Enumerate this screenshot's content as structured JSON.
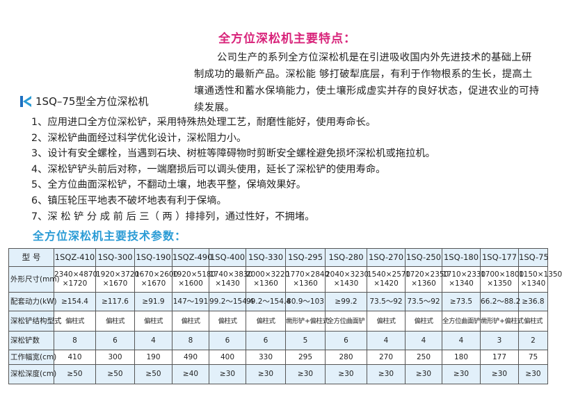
{
  "features_title": "全方位深松机主要特点：",
  "intro_text": "公司生产的系列全方位深松机是在引进吸收国内外先进技术的基础上研制成功的最新产品。深松能 够打破犁底层，有利于作物根系的生长，提高土壤通透性和蓄水保墒能力，使土壤形成虚实并存的良好状态，促进农业的可持续发展。",
  "model_heading": {
    "icon": "blue-k-logo-icon",
    "text": "1SQ–75型全方位深松机"
  },
  "features": [
    "1、应用进口全方位深松铲，采用特殊热处理工艺，耐磨性能好，使用寿命长。",
    "2、深松铲曲面经过科学优化设计，深松阻力小。",
    "3、设计有安全螺栓，当遇到石块、树桩等障碍物时剪断安全螺栓避免损坏深松机或拖拉机。",
    "4、深松铲铲头前后对称，一端磨损后可以调头使用，延长了深松铲的使用寿命。",
    "5、全方位曲面深松铲，不翻动土壤，地表平整，保墒效果好。",
    "6、镇压轮压平地表不破坏地表有利于保墒。",
    "7、深 松 铲 分 成 前 后 三（ 两 ）排排列，通过性好，不拥堵。"
  ],
  "specs_title": "全方位深松机主要技术参数：",
  "colors": {
    "title": "#d8237a",
    "subhead": "#2a9bd5",
    "row_blue": "#e2f0fa"
  },
  "table": {
    "header": {
      "label": "型 号",
      "models": [
        "1SQZ-410",
        "1SQ-300",
        "1SQ-190",
        "1SQZ-490",
        "1SQ-400",
        "1SQ-330",
        "1SQ-295",
        "1SQ-280",
        "1SQ-270",
        "1SQ-250",
        "1SQ-180",
        "1SQ-177",
        "1SQ-75"
      ]
    },
    "rows": [
      {
        "label": "外形尺寸(mm)",
        "values": [
          [
            "2340×4870",
            "×1720"
          ],
          [
            "1920×3720",
            "×1670"
          ],
          [
            "1670×2600",
            "×1670"
          ],
          [
            "1920×5180",
            "×1600"
          ],
          [
            "1740×3830",
            "×1430"
          ],
          [
            "2000×3220",
            "×1360"
          ],
          [
            "1770×2840",
            "×1360"
          ],
          [
            "2040×3230",
            "×1430"
          ],
          [
            "1540×2570",
            "×1420"
          ],
          [
            "1720×2350",
            "×1360"
          ],
          [
            "1710×2330",
            "×1340"
          ],
          [
            "1700×1800",
            "×1350"
          ],
          [
            "1150×1350",
            "×1340"
          ]
        ]
      },
      {
        "label": "配套动力(kW)",
        "values": [
          "≥154.4",
          "≥117.6",
          "≥91.9",
          "147～191",
          "99.2～154.4",
          "99.2～154.4",
          "80.9～103",
          "≥99.2",
          "73.5～92",
          "73.5～92",
          "≥73.5",
          "66.2～88.2",
          "≥36.8"
        ]
      },
      {
        "label": "深松铲结构型式",
        "values": [
          "偏柱式",
          "偏柱式",
          "偏柱式",
          "偏柱式",
          "偏柱式",
          "偏柱式",
          "凿形铲+偏柱式",
          "全方位曲面铲",
          "偏柱式",
          "偏柱式",
          "全方位曲面铲",
          "凿形铲+偏柱式",
          "偏柱式"
        ]
      },
      {
        "label": "深松铲数",
        "values": [
          "8",
          "6",
          "4",
          "8",
          "6",
          "6",
          "5",
          "6",
          "4",
          "4",
          "4",
          "3",
          "2"
        ]
      },
      {
        "label": "工作幅宽(cm)",
        "values": [
          "410",
          "300",
          "190",
          "490",
          "400",
          "330",
          "295",
          "280",
          "270",
          "250",
          "180",
          "177",
          "75"
        ]
      },
      {
        "label": "深松深度(cm)",
        "values": [
          "≥50",
          "≥50",
          "≥50",
          "≥40",
          "≥30",
          "≥30",
          "≥30",
          "≥30",
          "≥30",
          "≥30",
          "≥30",
          "≥30",
          "≥30"
        ]
      }
    ]
  }
}
